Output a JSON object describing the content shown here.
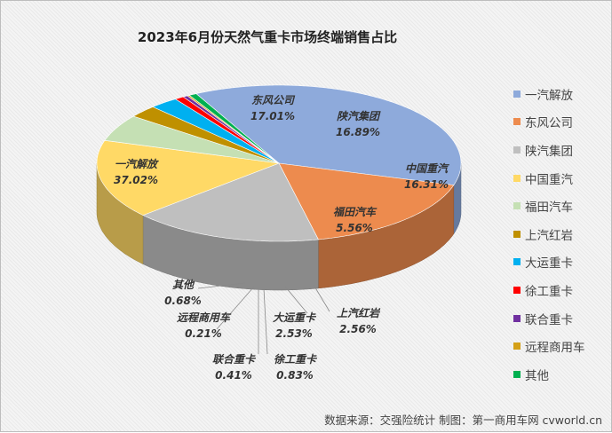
{
  "chart_data": {
    "type": "pie",
    "title": "2023年6月份天然气重卡市场终端销售占比",
    "legend_position": "right",
    "slices": [
      {
        "name": "一汽解放",
        "value": 37.02,
        "label": "37.02%",
        "color": "#8eaadb"
      },
      {
        "name": "东风公司",
        "value": 17.01,
        "label": "17.01%",
        "color": "#ed8b4e"
      },
      {
        "name": "陕汽集团",
        "value": 16.89,
        "label": "16.89%",
        "color": "#bfbfbf"
      },
      {
        "name": "中国重汽",
        "value": 16.31,
        "label": "16.31%",
        "color": "#ffd966"
      },
      {
        "name": "福田汽车",
        "value": 5.56,
        "label": "5.56%",
        "color": "#c5e0b4"
      },
      {
        "name": "上汽红岩",
        "value": 2.56,
        "label": "2.56%",
        "color": "#bf9000"
      },
      {
        "name": "大运重卡",
        "value": 2.53,
        "label": "2.53%",
        "color": "#00b0f0"
      },
      {
        "name": "徐工重卡",
        "value": 0.83,
        "label": "0.83%",
        "color": "#ff0000"
      },
      {
        "name": "联合重卡",
        "value": 0.41,
        "label": "0.41%",
        "color": "#7030a0"
      },
      {
        "name": "远程商用车",
        "value": 0.21,
        "label": "0.21%",
        "color": "#d4a017"
      },
      {
        "name": "其他",
        "value": 0.68,
        "label": "0.68%",
        "color": "#00b050"
      }
    ]
  },
  "footer": "数据来源：交强险统计  制图：第一商用车网 cvworld.cn"
}
